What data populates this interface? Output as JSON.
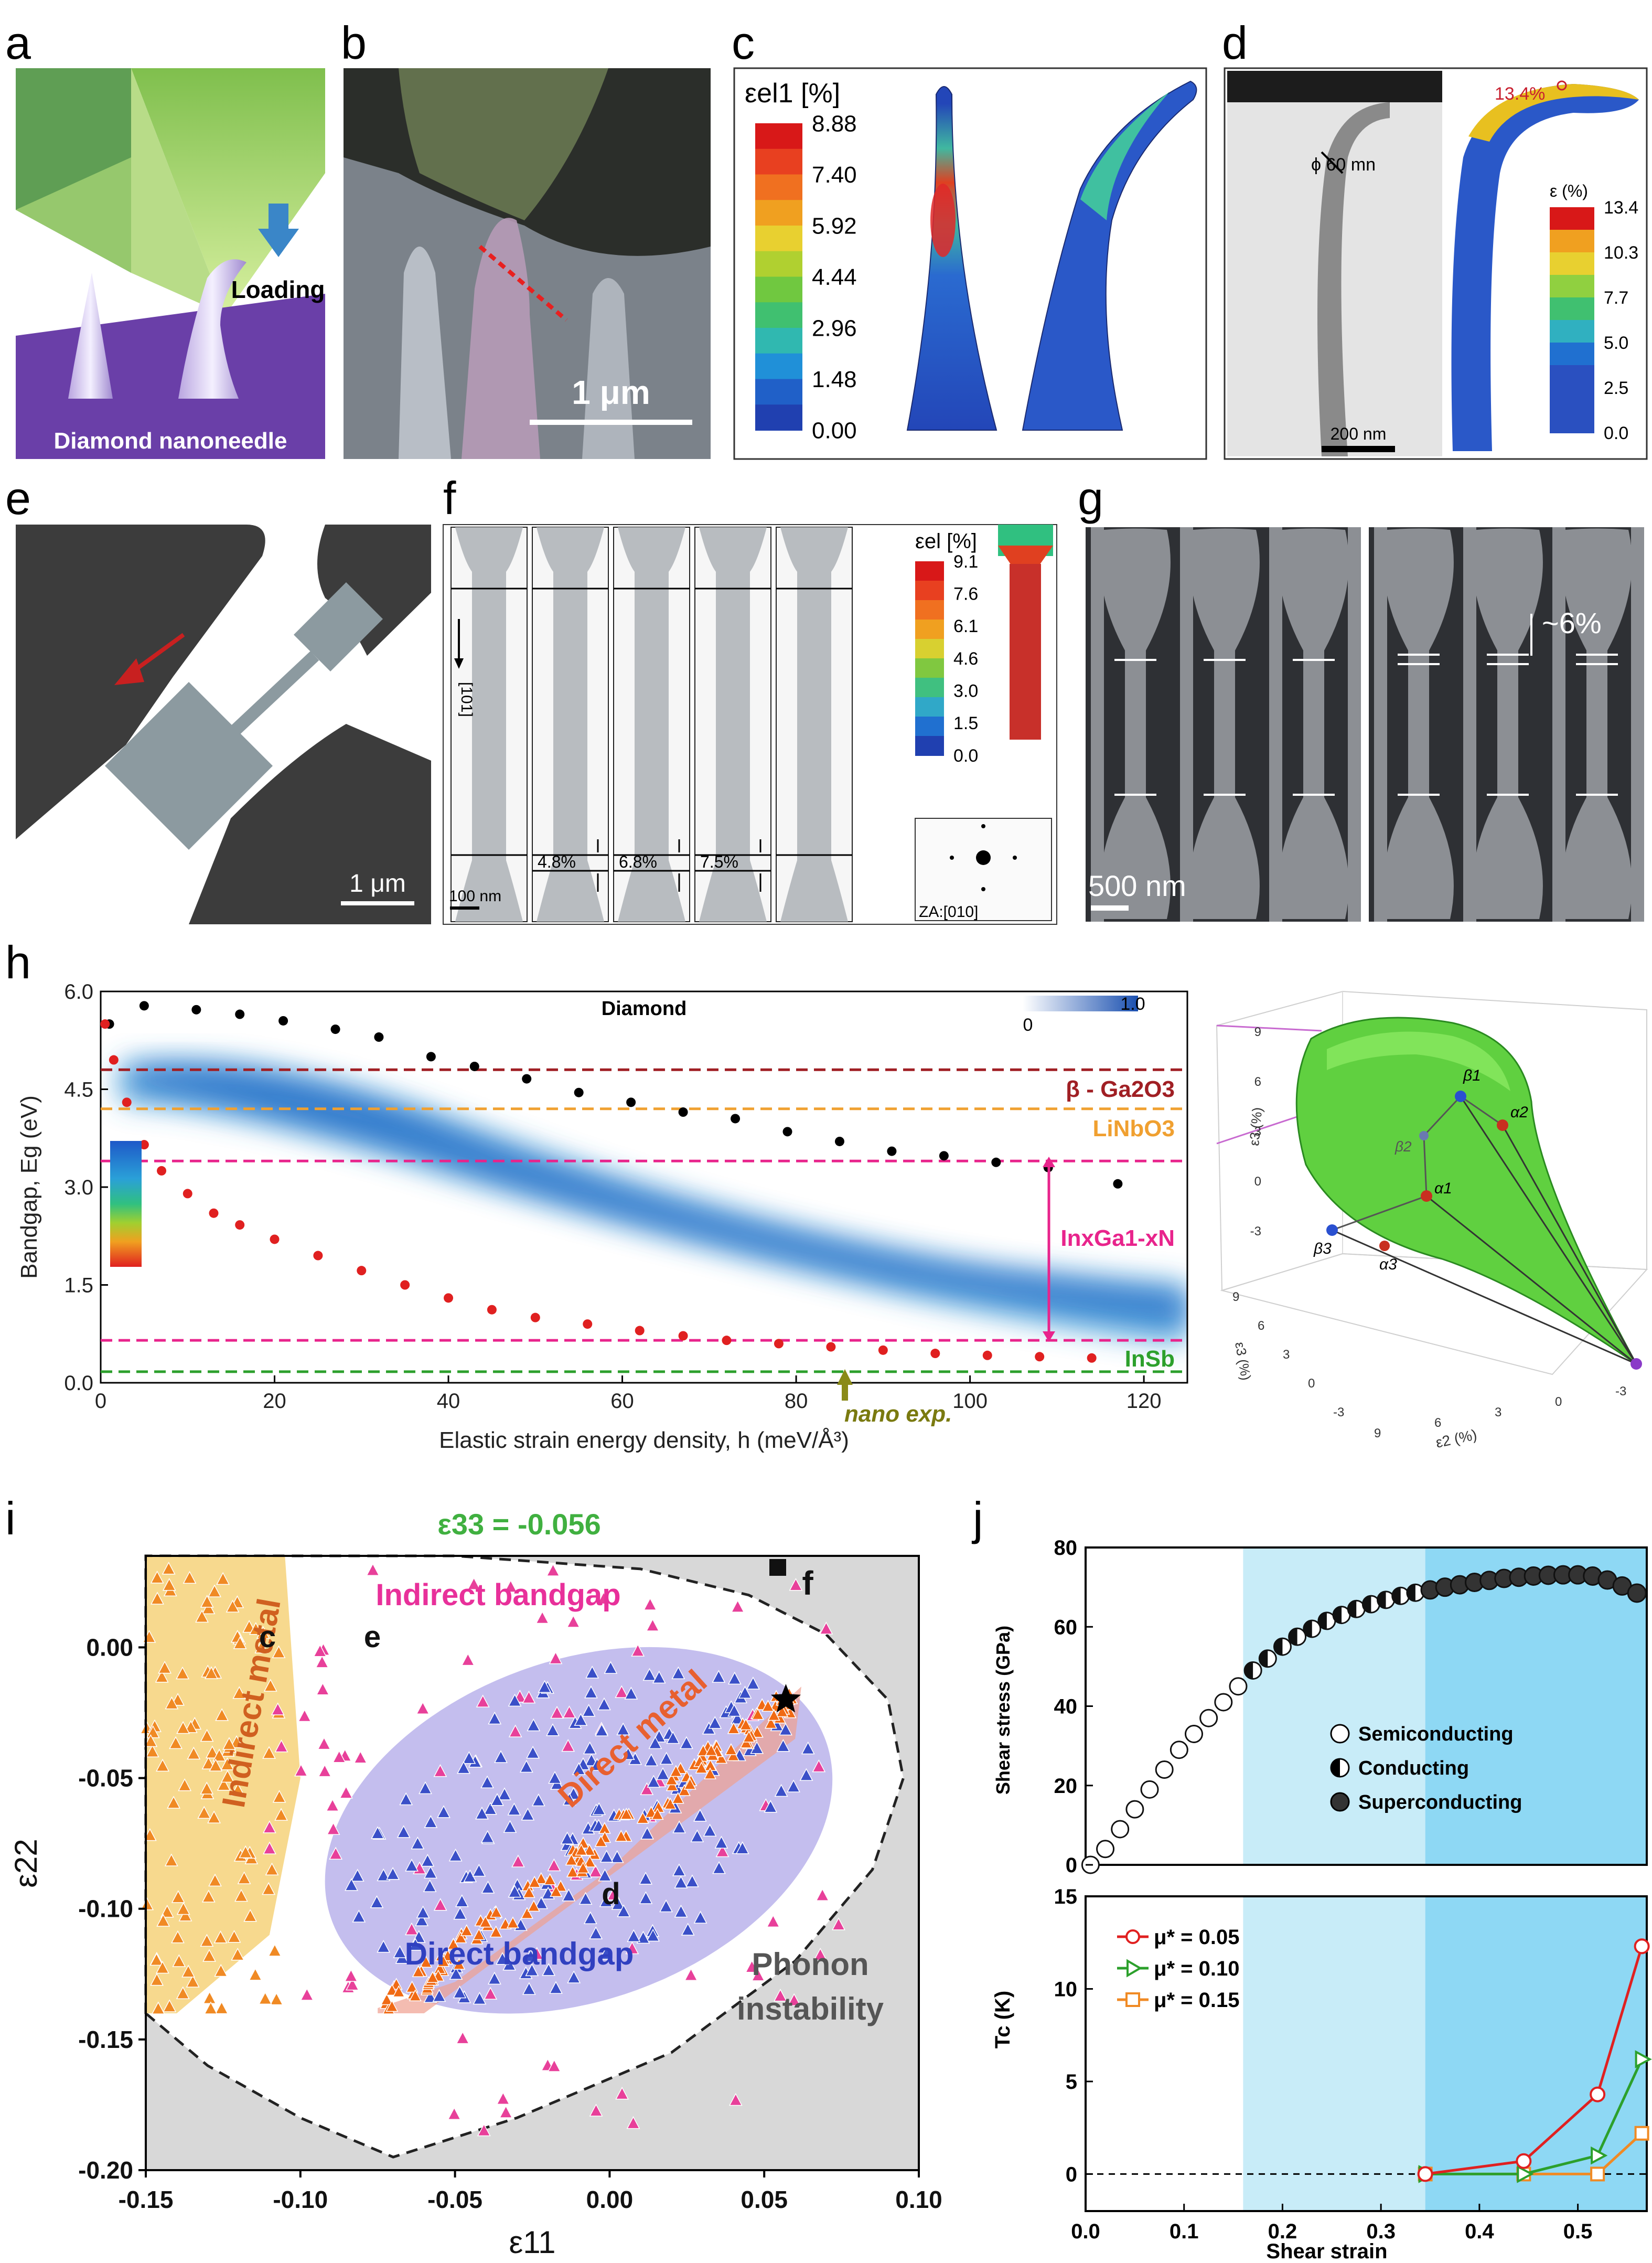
{
  "panel_letters": {
    "a": "a",
    "b": "b",
    "c": "c",
    "d": "d",
    "e": "e",
    "f": "f",
    "g": "g",
    "h": "h",
    "i": "i",
    "j": "j"
  },
  "a": {
    "loading": "Loading",
    "needle": "Diamond nanoneedle"
  },
  "b": {
    "scale": "1 μm"
  },
  "c": {
    "cb_title": "εel1 [%]",
    "cb_ticks": [
      "8.88",
      "7.40",
      "5.92",
      "4.44",
      "2.96",
      "1.48",
      "0.00"
    ]
  },
  "d": {
    "strain_label": "13.4%",
    "phi": "ϕ 60 mn",
    "scale": "200 nm",
    "cb_title": "ε (%)",
    "cb_ticks": [
      "13.4",
      "10.3",
      "7.7",
      "5.0",
      "2.5",
      "0.0"
    ]
  },
  "e": {
    "scale": "1 μm"
  },
  "f": {
    "direction": "[101]",
    "strains": [
      "4.8%",
      "6.8%",
      "7.5%"
    ],
    "scale": "100 nm",
    "cb_title": "εel [%]",
    "cb_ticks": [
      "9.1",
      "7.6",
      "6.1",
      "4.6",
      "3.0",
      "1.5",
      "0.0"
    ],
    "za": "ZA:[010]"
  },
  "g": {
    "strain": "~6%",
    "scale": "500 nm"
  },
  "h": {
    "title": "Diamond",
    "ylabel": "Bandgap, Eg (eV)",
    "xlabel": "Elastic strain energy density, h (meV/Å³)",
    "cb_min": "0",
    "cb_max": "1.0",
    "nano_exp": "nano exp.",
    "materials": [
      {
        "name": "β - Ga2O3",
        "value": 4.8,
        "color": "#a01f24"
      },
      {
        "name": "LiNbO3",
        "value": 4.2,
        "color": "#f0a030"
      },
      {
        "name": "InxGa1-xN",
        "value": 3.4,
        "color": "#e8248c"
      },
      {
        "name": "InSb",
        "value": 0.17,
        "color": "#2ca02c"
      }
    ],
    "ingan_low": 0.65,
    "plot3d": {
      "x_axis": "ε2 (%)",
      "y_axis": "ε3 (%)",
      "z_axis": "ε3 (%)",
      "points": [
        "β1",
        "α2",
        "β2",
        "α1",
        "β3",
        "α3"
      ],
      "z_ticks": [
        "9",
        "6",
        "3",
        "0",
        "-3"
      ],
      "y_ticks": [
        "9",
        "6",
        "3",
        "0",
        "-3"
      ],
      "x_ticks": [
        "-3",
        "0",
        "3",
        "6",
        "9"
      ]
    }
  },
  "i": {
    "title": "ε33 = -0.056",
    "xlabel": "ε11",
    "ylabel": "ε22",
    "regions": {
      "indirect_metal": "Indirect metal",
      "indirect_bandgap": "Indirect bandgap",
      "direct_metal": "Direct metal",
      "direct_bandgap": "Direct bandgap",
      "phonon": [
        "Phonon",
        "instability"
      ]
    },
    "markers": {
      "c": "c",
      "e": "e",
      "d": "d",
      "f": "f"
    }
  },
  "j": {
    "xlabel": "Shear strain",
    "top": {
      "ylabel": "Shear stress (GPa)",
      "legend": [
        "Semiconducting",
        "Conducting",
        "Superconducting"
      ]
    },
    "bottom": {
      "ylabel": "Tc (K)",
      "legend": [
        "μ* = 0.05",
        "μ* = 0.10",
        "μ* = 0.15"
      ]
    }
  },
  "chart_data": [
    {
      "type": "scatter",
      "title": "Diamond",
      "xlabel": "Elastic strain energy density, h (meV/Å³)",
      "ylabel": "Bandgap, Eg (eV)",
      "xlim": [
        0,
        125
      ],
      "ylim": [
        0,
        6
      ],
      "x_ticks": [
        "0",
        "20",
        "40",
        "60",
        "80",
        "100",
        "120"
      ],
      "y_ticks": [
        "0.0",
        "1.5",
        "3.0",
        "4.5",
        "6.0"
      ],
      "series": [
        {
          "name": "upper",
          "color": "#000000",
          "x": [
            1,
            5,
            11,
            16,
            21,
            27,
            32,
            38,
            43,
            49,
            55,
            61,
            67,
            73,
            79,
            85,
            91,
            97,
            103,
            109,
            117
          ],
          "y": [
            5.5,
            5.78,
            5.72,
            5.65,
            5.55,
            5.42,
            5.3,
            5.0,
            4.85,
            4.66,
            4.45,
            4.3,
            4.15,
            4.05,
            3.85,
            3.7,
            3.55,
            3.48,
            3.38,
            3.3,
            3.05
          ]
        },
        {
          "name": "lower",
          "color": "#e02020",
          "x": [
            0.5,
            1.5,
            3,
            5,
            7,
            10,
            13,
            16,
            20,
            25,
            30,
            35,
            40,
            45,
            50,
            56,
            62,
            67,
            72,
            78,
            84,
            90,
            96,
            102,
            108,
            114
          ],
          "y": [
            5.5,
            4.95,
            4.3,
            3.65,
            3.25,
            2.9,
            2.6,
            2.42,
            2.2,
            1.95,
            1.72,
            1.5,
            1.3,
            1.12,
            1.0,
            0.9,
            0.8,
            0.72,
            0.65,
            0.6,
            0.55,
            0.5,
            0.45,
            0.42,
            0.4,
            0.38
          ]
        }
      ]
    },
    {
      "type": "scatter",
      "title": "ε33 = -0.056",
      "xlabel": "ε11",
      "ylabel": "ε22",
      "xlim": [
        -0.15,
        0.1
      ],
      "ylim": [
        -0.2,
        0.035
      ],
      "x_ticks": [
        "-0.15",
        "-0.10",
        "-0.05",
        "0.00",
        "0.05",
        "0.10"
      ],
      "y_ticks": [
        "0.00",
        "-0.05",
        "-0.10",
        "-0.15",
        "-0.20"
      ],
      "series": [
        {
          "name": "Indirect metal",
          "color": "#f08a24"
        },
        {
          "name": "Indirect bandgap",
          "color": "#e8409a"
        },
        {
          "name": "Direct bandgap",
          "color": "#3a4fc8"
        },
        {
          "name": "Direct metal",
          "color": "#f06a14"
        }
      ]
    },
    {
      "type": "scatter",
      "xlabel": "Shear strain",
      "ylabel": "Shear stress (GPa)",
      "xlim": [
        0,
        0.57
      ],
      "ylim": [
        0,
        80
      ],
      "x_ticks": [
        "0.0",
        "0.1",
        "0.2",
        "0.3",
        "0.4",
        "0.5"
      ],
      "y_ticks": [
        "0",
        "20",
        "40",
        "60",
        "80"
      ],
      "x": [
        0.005,
        0.02,
        0.035,
        0.05,
        0.065,
        0.08,
        0.095,
        0.11,
        0.125,
        0.14,
        0.155,
        0.17,
        0.185,
        0.2,
        0.215,
        0.23,
        0.245,
        0.26,
        0.275,
        0.29,
        0.305,
        0.32,
        0.335,
        0.35,
        0.365,
        0.38,
        0.395,
        0.41,
        0.425,
        0.44,
        0.455,
        0.47,
        0.485,
        0.5,
        0.515,
        0.53,
        0.545,
        0.56
      ],
      "values": [
        0,
        4,
        9,
        14,
        19,
        24,
        29,
        33,
        37,
        41,
        45,
        49,
        52,
        55,
        57.5,
        59.5,
        61.5,
        63,
        64.5,
        65.7,
        66.8,
        67.8,
        68.6,
        69.3,
        70,
        70.6,
        71.2,
        71.7,
        72.2,
        72.5,
        72.8,
        73,
        73.1,
        73.1,
        72.8,
        71.8,
        70.3,
        68.5
      ],
      "states": {
        "Semiconducting": [
          0,
          0.16
        ],
        "Conducting": [
          0.16,
          0.345
        ],
        "Superconducting": [
          0.345,
          0.57
        ]
      }
    },
    {
      "type": "line",
      "xlabel": "Shear strain",
      "ylabel": "Tc (K)",
      "xlim": [
        0,
        0.57
      ],
      "ylim": [
        -2,
        15
      ],
      "x_ticks": [
        "0.0",
        "0.1",
        "0.2",
        "0.3",
        "0.4",
        "0.5"
      ],
      "y_ticks": [
        "0",
        "5",
        "10",
        "15"
      ],
      "series": [
        {
          "name": "μ* = 0.05",
          "color": "#e02020",
          "x": [
            0.345,
            0.445,
            0.52,
            0.565
          ],
          "values": [
            0,
            0.7,
            4.3,
            12.3
          ]
        },
        {
          "name": "μ* = 0.10",
          "color": "#2ca02c",
          "x": [
            0.345,
            0.445,
            0.52,
            0.565
          ],
          "values": [
            0,
            0,
            1,
            6.2
          ]
        },
        {
          "name": "μ* = 0.15",
          "color": "#f08a24",
          "x": [
            0.345,
            0.445,
            0.52,
            0.565
          ],
          "values": [
            0,
            0,
            0,
            2.2
          ]
        }
      ]
    }
  ]
}
